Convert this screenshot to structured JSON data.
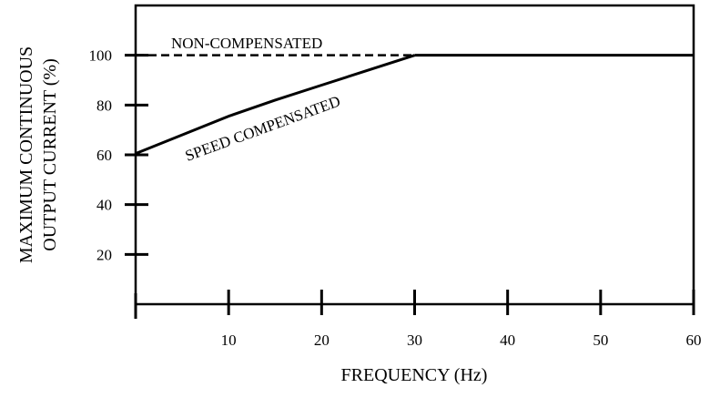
{
  "chart_data": {
    "type": "line",
    "xlabel": "FREQUENCY (Hz)",
    "ylabel_lines": [
      "MAXIMUM CONTINUOUS",
      "OUTPUT CURRENT (%)"
    ],
    "xlim": [
      0,
      60
    ],
    "ylim": [
      0,
      120
    ],
    "x_ticks": [
      "10",
      "20",
      "30",
      "40",
      "50",
      "60"
    ],
    "y_ticks": [
      "20",
      "40",
      "60",
      "80",
      "100"
    ],
    "grid": false,
    "series": [
      {
        "name": "NON-COMPENSATED",
        "style": "dashed-then-solid",
        "points": [
          [
            0,
            100
          ],
          [
            30,
            100
          ],
          [
            60,
            100
          ]
        ]
      },
      {
        "name": "SPEED COMPENSATED",
        "style": "solid",
        "points": [
          [
            0,
            60.5
          ],
          [
            5,
            68
          ],
          [
            10,
            75.5
          ],
          [
            15,
            82
          ],
          [
            20,
            88
          ],
          [
            25,
            94
          ],
          [
            30,
            100
          ]
        ]
      }
    ]
  }
}
